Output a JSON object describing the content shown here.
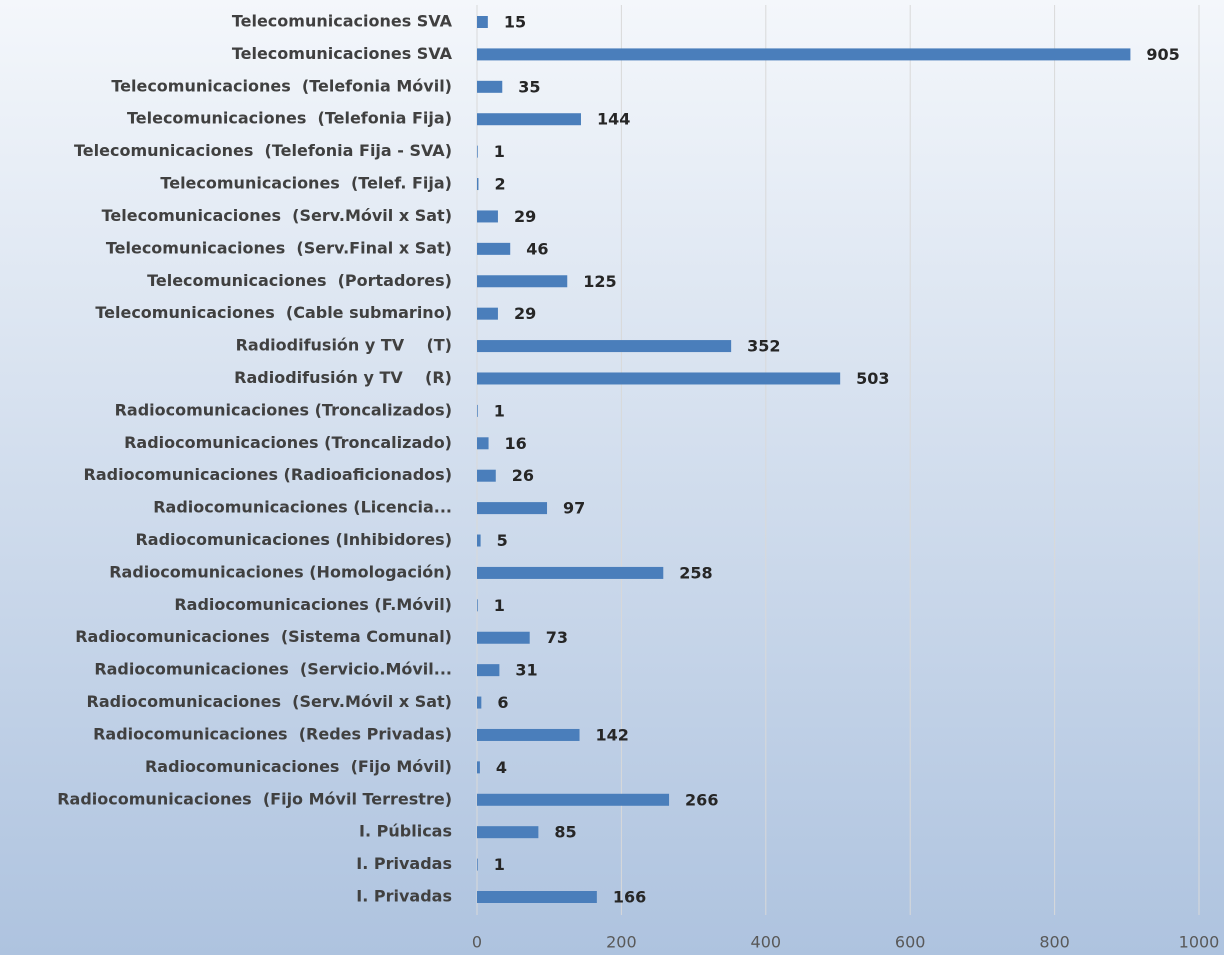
{
  "chart_data": {
    "type": "bar",
    "orientation": "horizontal",
    "categories": [
      "Telecomunicaciones SVA",
      "Telecomunicaciones SVA",
      "Telecomunicaciones  (Telefonia Móvil)",
      "Telecomunicaciones  (Telefonia Fija)",
      "Telecomunicaciones  (Telefonia Fija - SVA)",
      "Telecomunicaciones  (Telef. Fija)",
      "Telecomunicaciones  (Serv.Móvil x Sat)",
      "Telecomunicaciones  (Serv.Final x Sat)",
      "Telecomunicaciones  (Portadores)",
      "Telecomunicaciones  (Cable submarino)",
      "Radiodifusión y TV    (T)",
      "Radiodifusión y TV    (R)",
      "Radiocomunicaciones (Troncalizados)",
      "Radiocomunicaciones (Troncalizado)",
      "Radiocomunicaciones (Radioaficionados)",
      "Radiocomunicaciones (Licencia...",
      "Radiocomunicaciones (Inhibidores)",
      "Radiocomunicaciones (Homologación)",
      "Radiocomunicaciones (F.Móvil)",
      "Radiocomunicaciones  (Sistema Comunal)",
      "Radiocomunicaciones  (Servicio.Móvil...",
      "Radiocomunicaciones  (Serv.Móvil x Sat)",
      "Radiocomunicaciones  (Redes Privadas)",
      "Radiocomunicaciones  (Fijo Móvil)",
      "Radiocomunicaciones  (Fijo Móvil Terrestre)",
      "I. Públicas",
      "I. Privadas",
      "I. Privadas"
    ],
    "values": [
      15,
      905,
      35,
      144,
      1,
      2,
      29,
      46,
      125,
      29,
      352,
      503,
      1,
      16,
      26,
      97,
      5,
      258,
      1,
      73,
      31,
      6,
      142,
      4,
      266,
      85,
      1,
      166
    ],
    "color": "#4a7ebb",
    "xlim": [
      0,
      1000
    ],
    "xticks": [
      0,
      200,
      400,
      600,
      800,
      1000
    ],
    "grid": true
  }
}
